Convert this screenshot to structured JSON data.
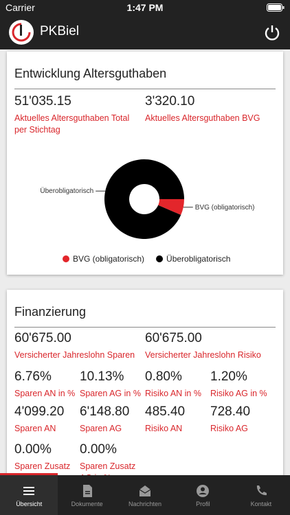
{
  "status": {
    "carrier": "Carrier",
    "time": "1:47 PM"
  },
  "header": {
    "title": "PKBiel"
  },
  "cards": [
    {
      "title": "Entwicklung Altersguthaben",
      "rows": [
        [
          {
            "value": "51'035.15",
            "label": "Aktuelles Altersguthaben Total per Stichtag"
          },
          {
            "value": "3'320.10",
            "label": "Aktuelles Altersguthaben BVG"
          }
        ]
      ],
      "chart": {
        "type": "pie",
        "categories": [
          "BVG (obligatorisch)",
          "Überobligatorisch"
        ],
        "values": [
          6.5,
          93.5
        ],
        "colors": [
          "#e3262b",
          "#000000"
        ]
      }
    },
    {
      "title": "Finanzierung",
      "rows": [
        [
          {
            "value": "60'675.00",
            "label": "Versicherter Jahreslohn Sparen"
          },
          {
            "value": "60'675.00",
            "label": "Versicherter Jahreslohn Risiko"
          }
        ],
        [
          {
            "value": "6.76%",
            "label": "Sparen AN in %"
          },
          {
            "value": "10.13%",
            "label": "Sparen AG in %"
          },
          {
            "value": "0.80%",
            "label": "Risiko AN in %"
          },
          {
            "value": "1.20%",
            "label": "Risiko AG in %"
          }
        ],
        [
          {
            "value": "4'099.20",
            "label": "Sparen AN"
          },
          {
            "value": "6'148.80",
            "label": "Sparen AG"
          },
          {
            "value": "485.40",
            "label": "Risiko AN"
          },
          {
            "value": "728.40",
            "label": "Risiko AG"
          }
        ],
        [
          {
            "value": "0.00%",
            "label": "Sparen Zusatz AN in %"
          },
          {
            "value": "0.00%",
            "label": "Sparen Zusatz AG in %"
          }
        ]
      ]
    }
  ],
  "tabs": [
    "Übersicht",
    "Dokumente",
    "Nachrichten",
    "Profil",
    "Kontakt"
  ]
}
